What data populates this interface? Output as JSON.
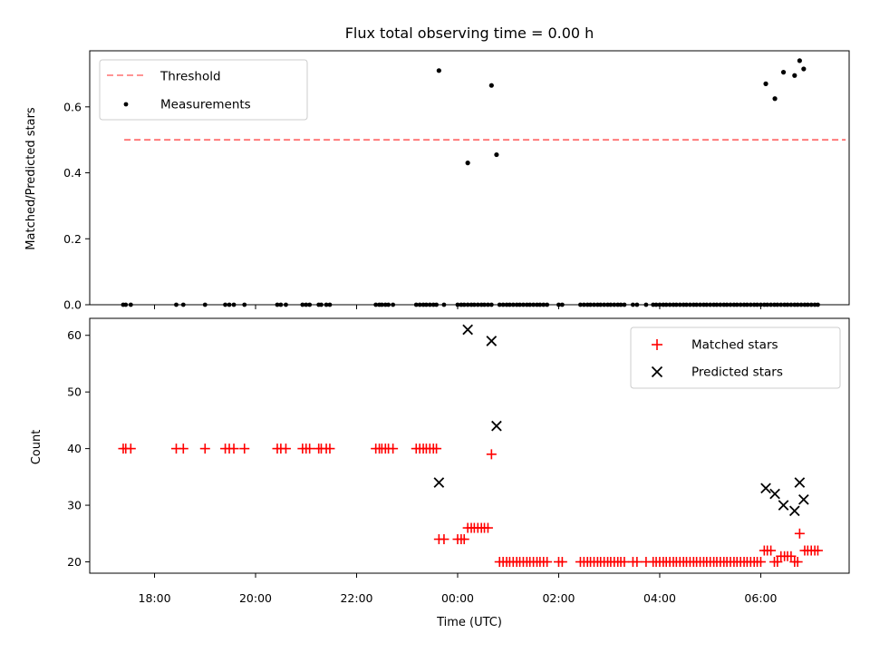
{
  "chart_data": [
    {
      "type": "scatter",
      "title": "Flux total observing time = 0.00 h",
      "xlabel": "",
      "ylabel": "Matched/Predicted stars",
      "xlim": [
        16.717,
        31.75
      ],
      "ylim": [
        0,
        0.77
      ],
      "yticks": [
        0.0,
        0.2,
        0.4,
        0.6
      ],
      "ytick_labels": [
        "0.0",
        "0.2",
        "0.4",
        "0.6"
      ],
      "legend": {
        "position": "upper left",
        "entries": [
          "Threshold",
          "Measurements"
        ]
      },
      "threshold": {
        "name": "Threshold",
        "y": 0.5,
        "x_range": [
          17.4,
          31.68
        ],
        "color": "#ff7070",
        "style": "dashed"
      },
      "series": [
        {
          "name": "Measurements",
          "color": "#000000",
          "marker": "dot",
          "points": [
            [
              23.63,
              0.71
            ],
            [
              24.2,
              0.43
            ],
            [
              24.67,
              0.665
            ],
            [
              24.77,
              0.455
            ],
            [
              30.1,
              0.67
            ],
            [
              30.28,
              0.625
            ],
            [
              30.45,
              0.705
            ],
            [
              30.67,
              0.695
            ],
            [
              30.77,
              0.74
            ],
            [
              30.85,
              0.715
            ]
          ],
          "zero_x": [
            17.38,
            17.43,
            17.53,
            18.43,
            18.57,
            19.0,
            19.4,
            19.48,
            19.57,
            19.78,
            20.43,
            20.5,
            20.6,
            20.93,
            21.0,
            21.07,
            21.25,
            21.3,
            21.4,
            21.47,
            22.38,
            22.45,
            22.5,
            22.57,
            22.63,
            22.72,
            23.18,
            23.25,
            23.32,
            23.38,
            23.45,
            23.52,
            23.58,
            23.73,
            24.0,
            24.07,
            24.13,
            24.2,
            24.27,
            24.33,
            24.4,
            24.47,
            24.53,
            24.6,
            24.67,
            24.83,
            24.9,
            24.97,
            25.03,
            25.1,
            25.17,
            25.23,
            25.3,
            25.37,
            25.43,
            25.5,
            25.57,
            25.63,
            25.7,
            25.77,
            26.0,
            26.07,
            26.43,
            26.5,
            26.57,
            26.63,
            26.7,
            26.77,
            26.83,
            26.9,
            26.97,
            27.03,
            27.1,
            27.17,
            27.23,
            27.3,
            27.47,
            27.55,
            27.73,
            27.87,
            27.93,
            28.0,
            28.07,
            28.13,
            28.2,
            28.27,
            28.33,
            28.4,
            28.47,
            28.53,
            28.6,
            28.67,
            28.73,
            28.8,
            28.87,
            28.93,
            29.0,
            29.07,
            29.13,
            29.2,
            29.27,
            29.33,
            29.4,
            29.47,
            29.53,
            29.6,
            29.67,
            29.73,
            29.8,
            29.87,
            29.93,
            30.0,
            30.07,
            30.13,
            30.2,
            30.27,
            30.33,
            30.4,
            30.47,
            30.53,
            30.6,
            30.67,
            30.73,
            30.8,
            30.87,
            30.93,
            31.0,
            31.07,
            31.13
          ]
        }
      ]
    },
    {
      "type": "scatter",
      "title": "",
      "xlabel": "Time (UTC)",
      "ylabel": "Count",
      "xlim": [
        16.717,
        31.75
      ],
      "ylim": [
        18,
        63
      ],
      "yticks": [
        20,
        30,
        40,
        50,
        60
      ],
      "ytick_labels": [
        "20",
        "30",
        "40",
        "50",
        "60"
      ],
      "xticks": [
        18,
        20,
        22,
        24,
        26,
        28,
        30
      ],
      "xtick_labels": [
        "18:00",
        "20:00",
        "22:00",
        "00:00",
        "02:00",
        "04:00",
        "06:00"
      ],
      "legend": {
        "position": "upper right",
        "entries": [
          "Matched stars",
          "Predicted stars"
        ]
      },
      "series": [
        {
          "name": "Matched stars",
          "color": "#ff0000",
          "marker": "plus",
          "points": [
            [
              17.38,
              40
            ],
            [
              17.43,
              40
            ],
            [
              17.53,
              40
            ],
            [
              18.43,
              40
            ],
            [
              18.57,
              40
            ],
            [
              19.0,
              40
            ],
            [
              19.4,
              40
            ],
            [
              19.48,
              40
            ],
            [
              19.57,
              40
            ],
            [
              19.78,
              40
            ],
            [
              20.43,
              40
            ],
            [
              20.5,
              40
            ],
            [
              20.6,
              40
            ],
            [
              20.93,
              40
            ],
            [
              21.0,
              40
            ],
            [
              21.07,
              40
            ],
            [
              21.25,
              40
            ],
            [
              21.3,
              40
            ],
            [
              21.4,
              40
            ],
            [
              21.47,
              40
            ],
            [
              22.38,
              40
            ],
            [
              22.45,
              40
            ],
            [
              22.5,
              40
            ],
            [
              22.57,
              40
            ],
            [
              22.63,
              40
            ],
            [
              22.72,
              40
            ],
            [
              23.18,
              40
            ],
            [
              23.25,
              40
            ],
            [
              23.32,
              40
            ],
            [
              23.38,
              40
            ],
            [
              23.45,
              40
            ],
            [
              23.52,
              40
            ],
            [
              23.58,
              40
            ],
            [
              23.63,
              24
            ],
            [
              23.73,
              24
            ],
            [
              24.0,
              24
            ],
            [
              24.07,
              24
            ],
            [
              24.13,
              24
            ],
            [
              24.2,
              26
            ],
            [
              24.27,
              26
            ],
            [
              24.33,
              26
            ],
            [
              24.4,
              26
            ],
            [
              24.47,
              26
            ],
            [
              24.53,
              26
            ],
            [
              24.6,
              26
            ],
            [
              24.67,
              39
            ],
            [
              24.83,
              20
            ],
            [
              24.9,
              20
            ],
            [
              24.97,
              20
            ],
            [
              25.03,
              20
            ],
            [
              25.1,
              20
            ],
            [
              25.17,
              20
            ],
            [
              25.23,
              20
            ],
            [
              25.3,
              20
            ],
            [
              25.37,
              20
            ],
            [
              25.43,
              20
            ],
            [
              25.5,
              20
            ],
            [
              25.57,
              20
            ],
            [
              25.63,
              20
            ],
            [
              25.7,
              20
            ],
            [
              25.77,
              20
            ],
            [
              26.0,
              20
            ],
            [
              26.07,
              20
            ],
            [
              26.43,
              20
            ],
            [
              26.5,
              20
            ],
            [
              26.57,
              20
            ],
            [
              26.63,
              20
            ],
            [
              26.7,
              20
            ],
            [
              26.77,
              20
            ],
            [
              26.83,
              20
            ],
            [
              26.9,
              20
            ],
            [
              26.97,
              20
            ],
            [
              27.03,
              20
            ],
            [
              27.1,
              20
            ],
            [
              27.17,
              20
            ],
            [
              27.23,
              20
            ],
            [
              27.3,
              20
            ],
            [
              27.47,
              20
            ],
            [
              27.55,
              20
            ],
            [
              27.73,
              20
            ],
            [
              27.87,
              20
            ],
            [
              27.93,
              20
            ],
            [
              28.0,
              20
            ],
            [
              28.07,
              20
            ],
            [
              28.13,
              20
            ],
            [
              28.2,
              20
            ],
            [
              28.27,
              20
            ],
            [
              28.33,
              20
            ],
            [
              28.4,
              20
            ],
            [
              28.47,
              20
            ],
            [
              28.53,
              20
            ],
            [
              28.6,
              20
            ],
            [
              28.67,
              20
            ],
            [
              28.73,
              20
            ],
            [
              28.8,
              20
            ],
            [
              28.87,
              20
            ],
            [
              28.93,
              20
            ],
            [
              29.0,
              20
            ],
            [
              29.07,
              20
            ],
            [
              29.13,
              20
            ],
            [
              29.2,
              20
            ],
            [
              29.27,
              20
            ],
            [
              29.33,
              20
            ],
            [
              29.4,
              20
            ],
            [
              29.47,
              20
            ],
            [
              29.53,
              20
            ],
            [
              29.6,
              20
            ],
            [
              29.67,
              20
            ],
            [
              29.73,
              20
            ],
            [
              29.8,
              20
            ],
            [
              29.87,
              20
            ],
            [
              29.93,
              20
            ],
            [
              30.0,
              20
            ],
            [
              30.07,
              22
            ],
            [
              30.13,
              22
            ],
            [
              30.2,
              22
            ],
            [
              30.27,
              20
            ],
            [
              30.33,
              20
            ],
            [
              30.4,
              21
            ],
            [
              30.47,
              21
            ],
            [
              30.53,
              21
            ],
            [
              30.6,
              21
            ],
            [
              30.67,
              20
            ],
            [
              30.73,
              20
            ],
            [
              30.77,
              25
            ],
            [
              30.87,
              22
            ],
            [
              30.93,
              22
            ],
            [
              31.0,
              22
            ],
            [
              31.07,
              22
            ],
            [
              31.13,
              22
            ]
          ]
        },
        {
          "name": "Predicted stars",
          "color": "#000000",
          "marker": "x",
          "points": [
            [
              23.63,
              34
            ],
            [
              24.2,
              61
            ],
            [
              24.67,
              59
            ],
            [
              24.77,
              44
            ],
            [
              30.1,
              33
            ],
            [
              30.28,
              32
            ],
            [
              30.45,
              30
            ],
            [
              30.67,
              29
            ],
            [
              30.77,
              34
            ],
            [
              30.85,
              31
            ]
          ]
        }
      ]
    }
  ]
}
